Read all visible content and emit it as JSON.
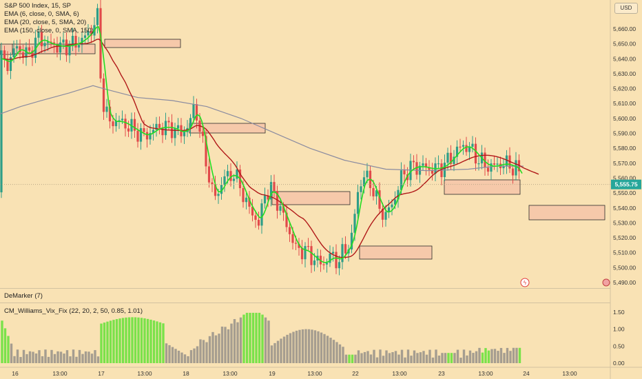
{
  "legend": {
    "title": "S&P 500 Index, 15, SP",
    "ema1": "EMA (6, close, 0, SMA, 6)",
    "ema2": "EMA (20, close, 5, SMA, 20)",
    "ema3": "EMA (150, close, 0, SMA, 150)",
    "demarker": "DeMarker (7)",
    "vix": "CM_Williams_Vix_Fix (22, 20, 2, 50, 0.85, 1.01)"
  },
  "currency_button": "USD",
  "colors": {
    "background": "#f9e2b4",
    "up_candle": "#2e9e87",
    "down_candle": "#e14a4a",
    "ema_fast": "#22dd22",
    "ema_mid": "#b01818",
    "ema_slow": "#8a8ba0",
    "zone_fill": "#f6c9aa",
    "hist_high": "#7ae24a",
    "hist_normal": "#a59d90"
  },
  "chart_data": {
    "type": "candlestick",
    "y_ticks": [
      "5,660.00",
      "5,650.00",
      "5,640.00",
      "5,630.00",
      "5,620.00",
      "5,610.00",
      "5,600.00",
      "5,590.00",
      "5,580.00",
      "5,570.00",
      "5,560.00",
      "5,550.00",
      "5,540.00",
      "5,530.00",
      "5,520.00",
      "5,510.00",
      "5,500.00",
      "5,490.00"
    ],
    "ylim": [
      5485,
      5673
    ],
    "last_price": "5,555.75",
    "x_ticks": [
      "16",
      "13:00",
      "17",
      "13:00",
      "18",
      "13:00",
      "19",
      "13:00",
      "22",
      "13:00",
      "23",
      "13:00",
      "24",
      "13:00"
    ],
    "vix_ticks": [
      "1.50",
      "1.00",
      "0.50",
      "0.00"
    ],
    "vix_ylim": [
      0,
      1.6
    ]
  }
}
